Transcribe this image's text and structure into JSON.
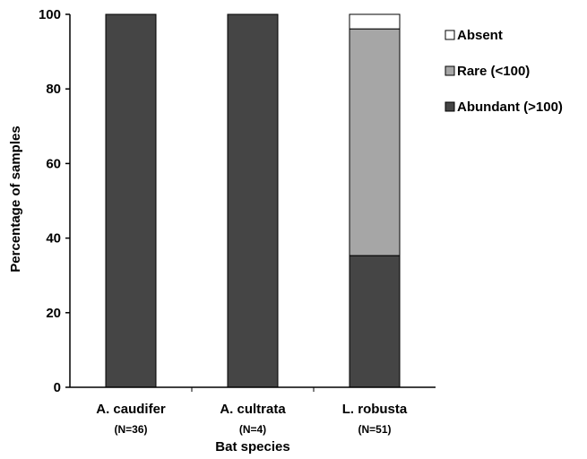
{
  "chart_data": {
    "type": "bar",
    "stacked": true,
    "categories": [
      "A. caudifer",
      "A. cultrata",
      "L. robusta"
    ],
    "category_sublabels": [
      "(N=36)",
      "(N=4)",
      "(N=51)"
    ],
    "series": [
      {
        "name": "Abundant (>100)",
        "values": [
          100,
          100,
          35.3
        ],
        "color": "#454545"
      },
      {
        "name": "Rare (<100)",
        "values": [
          0,
          0,
          60.8
        ],
        "color": "#a6a6a6"
      },
      {
        "name": "Absent",
        "values": [
          0,
          0,
          3.9
        ],
        "color": "#ffffff"
      }
    ],
    "legend_order": [
      "Absent",
      "Rare (<100)",
      "Abundant (>100)"
    ],
    "xlabel": "Bat species",
    "ylabel": "Percentage of samples",
    "ylim": [
      0,
      100
    ],
    "yticks": [
      0,
      20,
      40,
      60,
      80,
      100
    ],
    "grid": false,
    "legend_position": "right"
  }
}
